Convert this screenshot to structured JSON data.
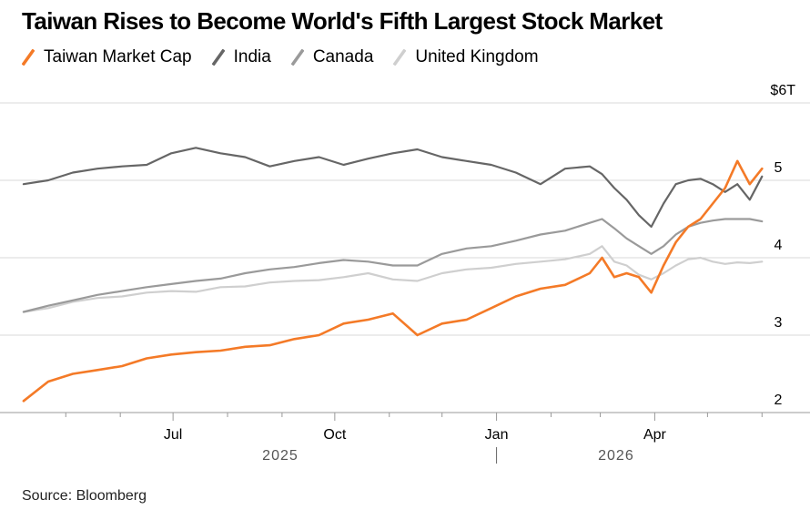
{
  "chart_data": {
    "type": "line",
    "title": "Taiwan Rises to Become World's Fifth Largest Stock Market",
    "source": "Source: Bloomberg",
    "y_unit_label": "$6T",
    "ylim": [
      2,
      6
    ],
    "y_ticks": [
      {
        "value": 2,
        "label": "2"
      },
      {
        "value": 3,
        "label": "3"
      },
      {
        "value": 4,
        "label": "4"
      },
      {
        "value": 5,
        "label": "5"
      }
    ],
    "x_range": [
      "2025-04-06",
      "2026-06-05"
    ],
    "x_ticks": [
      {
        "date": "2025-07-01",
        "label": "Jul"
      },
      {
        "date": "2025-10-01",
        "label": "Oct"
      },
      {
        "date": "2026-01-01",
        "label": "Jan"
      },
      {
        "date": "2026-04-01",
        "label": "Apr"
      }
    ],
    "x_year_labels": [
      {
        "date": "2025-08-31",
        "label": "2025"
      },
      {
        "date": "2026-03-10",
        "label": "2026"
      }
    ],
    "x_year_divider": "2026-01-01",
    "grid": true,
    "legend_position": "top-left",
    "series": [
      {
        "name": "United Kingdom",
        "color": "#cfcfcf",
        "points": [
          [
            "2025-04-07",
            3.3
          ],
          [
            "2025-04-21",
            3.35
          ],
          [
            "2025-05-05",
            3.43
          ],
          [
            "2025-05-19",
            3.48
          ],
          [
            "2025-06-02",
            3.5
          ],
          [
            "2025-06-16",
            3.55
          ],
          [
            "2025-06-30",
            3.57
          ],
          [
            "2025-07-14",
            3.56
          ],
          [
            "2025-07-28",
            3.62
          ],
          [
            "2025-08-11",
            3.63
          ],
          [
            "2025-08-25",
            3.68
          ],
          [
            "2025-09-08",
            3.7
          ],
          [
            "2025-09-22",
            3.71
          ],
          [
            "2025-10-06",
            3.75
          ],
          [
            "2025-10-20",
            3.8
          ],
          [
            "2025-11-03",
            3.72
          ],
          [
            "2025-11-17",
            3.7
          ],
          [
            "2025-12-01",
            3.8
          ],
          [
            "2025-12-15",
            3.85
          ],
          [
            "2025-12-29",
            3.87
          ],
          [
            "2026-01-12",
            3.92
          ],
          [
            "2026-01-26",
            3.95
          ],
          [
            "2026-02-09",
            3.98
          ],
          [
            "2026-02-23",
            4.05
          ],
          [
            "2026-03-02",
            4.15
          ],
          [
            "2026-03-09",
            3.95
          ],
          [
            "2026-03-16",
            3.9
          ],
          [
            "2026-03-23",
            3.78
          ],
          [
            "2026-03-30",
            3.72
          ],
          [
            "2026-04-06",
            3.8
          ],
          [
            "2026-04-13",
            3.9
          ],
          [
            "2026-04-20",
            3.98
          ],
          [
            "2026-04-27",
            4.0
          ],
          [
            "2026-05-04",
            3.95
          ],
          [
            "2026-05-11",
            3.92
          ],
          [
            "2026-05-18",
            3.94
          ],
          [
            "2026-05-25",
            3.93
          ],
          [
            "2026-06-01",
            3.95
          ]
        ]
      },
      {
        "name": "Canada",
        "color": "#9a9a9a",
        "points": [
          [
            "2025-04-07",
            3.3
          ],
          [
            "2025-04-21",
            3.38
          ],
          [
            "2025-05-05",
            3.45
          ],
          [
            "2025-05-19",
            3.52
          ],
          [
            "2025-06-02",
            3.57
          ],
          [
            "2025-06-16",
            3.62
          ],
          [
            "2025-06-30",
            3.66
          ],
          [
            "2025-07-14",
            3.7
          ],
          [
            "2025-07-28",
            3.73
          ],
          [
            "2025-08-11",
            3.8
          ],
          [
            "2025-08-25",
            3.85
          ],
          [
            "2025-09-08",
            3.88
          ],
          [
            "2025-09-22",
            3.93
          ],
          [
            "2025-10-06",
            3.97
          ],
          [
            "2025-10-20",
            3.95
          ],
          [
            "2025-11-03",
            3.9
          ],
          [
            "2025-11-17",
            3.9
          ],
          [
            "2025-12-01",
            4.05
          ],
          [
            "2025-12-15",
            4.12
          ],
          [
            "2025-12-29",
            4.15
          ],
          [
            "2026-01-12",
            4.22
          ],
          [
            "2026-01-26",
            4.3
          ],
          [
            "2026-02-09",
            4.35
          ],
          [
            "2026-02-23",
            4.45
          ],
          [
            "2026-03-02",
            4.5
          ],
          [
            "2026-03-09",
            4.38
          ],
          [
            "2026-03-16",
            4.25
          ],
          [
            "2026-03-23",
            4.15
          ],
          [
            "2026-03-30",
            4.05
          ],
          [
            "2026-04-06",
            4.15
          ],
          [
            "2026-04-13",
            4.3
          ],
          [
            "2026-04-20",
            4.4
          ],
          [
            "2026-04-27",
            4.45
          ],
          [
            "2026-05-04",
            4.48
          ],
          [
            "2026-05-11",
            4.5
          ],
          [
            "2026-05-18",
            4.5
          ],
          [
            "2026-05-25",
            4.5
          ],
          [
            "2026-06-01",
            4.47
          ]
        ]
      },
      {
        "name": "India",
        "color": "#666666",
        "points": [
          [
            "2025-04-07",
            4.95
          ],
          [
            "2025-04-21",
            5.0
          ],
          [
            "2025-05-05",
            5.1
          ],
          [
            "2025-05-19",
            5.15
          ],
          [
            "2025-06-02",
            5.18
          ],
          [
            "2025-06-16",
            5.2
          ],
          [
            "2025-06-30",
            5.35
          ],
          [
            "2025-07-14",
            5.42
          ],
          [
            "2025-07-28",
            5.35
          ],
          [
            "2025-08-11",
            5.3
          ],
          [
            "2025-08-25",
            5.18
          ],
          [
            "2025-09-08",
            5.25
          ],
          [
            "2025-09-22",
            5.3
          ],
          [
            "2025-10-06",
            5.2
          ],
          [
            "2025-10-20",
            5.28
          ],
          [
            "2025-11-03",
            5.35
          ],
          [
            "2025-11-17",
            5.4
          ],
          [
            "2025-12-01",
            5.3
          ],
          [
            "2025-12-15",
            5.25
          ],
          [
            "2025-12-29",
            5.2
          ],
          [
            "2026-01-12",
            5.1
          ],
          [
            "2026-01-26",
            4.95
          ],
          [
            "2026-02-09",
            5.15
          ],
          [
            "2026-02-23",
            5.18
          ],
          [
            "2026-03-02",
            5.08
          ],
          [
            "2026-03-09",
            4.9
          ],
          [
            "2026-03-16",
            4.75
          ],
          [
            "2026-03-23",
            4.55
          ],
          [
            "2026-03-30",
            4.4
          ],
          [
            "2026-04-06",
            4.7
          ],
          [
            "2026-04-13",
            4.95
          ],
          [
            "2026-04-20",
            5.0
          ],
          [
            "2026-04-27",
            5.02
          ],
          [
            "2026-05-04",
            4.95
          ],
          [
            "2026-05-11",
            4.85
          ],
          [
            "2026-05-18",
            4.95
          ],
          [
            "2026-05-25",
            4.75
          ],
          [
            "2026-06-01",
            5.05
          ]
        ]
      },
      {
        "name": "Taiwan Market Cap",
        "color": "#f47a27",
        "points": [
          [
            "2025-04-07",
            2.15
          ],
          [
            "2025-04-21",
            2.4
          ],
          [
            "2025-05-05",
            2.5
          ],
          [
            "2025-05-19",
            2.55
          ],
          [
            "2025-06-02",
            2.6
          ],
          [
            "2025-06-16",
            2.7
          ],
          [
            "2025-06-30",
            2.75
          ],
          [
            "2025-07-14",
            2.78
          ],
          [
            "2025-07-28",
            2.8
          ],
          [
            "2025-08-11",
            2.85
          ],
          [
            "2025-08-25",
            2.87
          ],
          [
            "2025-09-08",
            2.95
          ],
          [
            "2025-09-22",
            3.0
          ],
          [
            "2025-10-06",
            3.15
          ],
          [
            "2025-10-20",
            3.2
          ],
          [
            "2025-11-03",
            3.28
          ],
          [
            "2025-11-17",
            3.0
          ],
          [
            "2025-12-01",
            3.15
          ],
          [
            "2025-12-15",
            3.2
          ],
          [
            "2025-12-29",
            3.35
          ],
          [
            "2026-01-12",
            3.5
          ],
          [
            "2026-01-26",
            3.6
          ],
          [
            "2026-02-09",
            3.65
          ],
          [
            "2026-02-23",
            3.8
          ],
          [
            "2026-03-02",
            4.0
          ],
          [
            "2026-03-09",
            3.75
          ],
          [
            "2026-03-16",
            3.8
          ],
          [
            "2026-03-23",
            3.75
          ],
          [
            "2026-03-30",
            3.55
          ],
          [
            "2026-04-06",
            3.9
          ],
          [
            "2026-04-13",
            4.2
          ],
          [
            "2026-04-20",
            4.4
          ],
          [
            "2026-04-27",
            4.5
          ],
          [
            "2026-05-04",
            4.7
          ],
          [
            "2026-05-11",
            4.9
          ],
          [
            "2026-05-18",
            5.25
          ],
          [
            "2026-05-25",
            4.95
          ],
          [
            "2026-06-01",
            5.15
          ]
        ]
      }
    ]
  }
}
